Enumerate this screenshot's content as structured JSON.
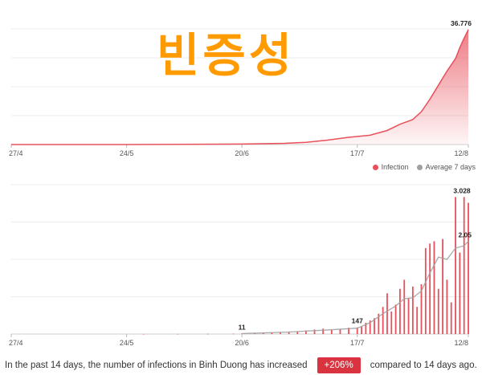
{
  "overlay_text": "빈증성",
  "footer": {
    "prefix": "In the past 14 days, the number of infections in Binh Duong has increased",
    "badge": "+206%",
    "suffix": "compared to 14 days ago."
  },
  "legend": {
    "infection": "Infection",
    "average": "Average 7 days",
    "infection_color": "#e8505b",
    "average_color": "#a0a0a0"
  },
  "chart_data": [
    {
      "type": "area",
      "x_ticks": [
        "27/4",
        "24/5",
        "20/6",
        "17/7",
        "12/8"
      ],
      "x_start": "27/4",
      "x_end": "12/8",
      "ylim": [
        0,
        37000
      ],
      "grid": true,
      "series": [
        {
          "name": "Infection",
          "color": "#e8505b",
          "points": [
            [
              "27/4",
              0
            ],
            [
              "24/5",
              2
            ],
            [
              "20/6",
              150
            ],
            [
              "30/6",
              400
            ],
            [
              "5/7",
              700
            ],
            [
              "10/7",
              1400
            ],
            [
              "15/7",
              2300
            ],
            [
              "20/7",
              3000
            ],
            [
              "24/7",
              4500
            ],
            [
              "27/7",
              6500
            ],
            [
              "30/7",
              8000
            ],
            [
              "1/8",
              10500
            ],
            [
              "3/8",
              14500
            ],
            [
              "5/8",
              19000
            ],
            [
              "7/8",
              23500
            ],
            [
              "9/8",
              27500
            ],
            [
              "10/8",
              31000
            ],
            [
              "11/8",
              34000
            ],
            [
              "12/8",
              36776
            ]
          ]
        }
      ],
      "labels": [
        {
          "x": "12/8",
          "text": "36.776"
        }
      ]
    },
    {
      "type": "bar",
      "x_ticks": [
        "27/4",
        "24/5",
        "20/6",
        "17/7",
        "12/8"
      ],
      "x_start": "27/4",
      "x_end": "12/8",
      "ylim": [
        0,
        3300
      ],
      "grid": true,
      "series": [
        {
          "name": "Infection",
          "type": "bar",
          "color": "#e8505b",
          "points": [
            [
              "28/5",
              2
            ],
            [
              "5/6",
              3
            ],
            [
              "12/6",
              5
            ],
            [
              "18/6",
              8
            ],
            [
              "20/6",
              11
            ],
            [
              "23/6",
              20
            ],
            [
              "25/6",
              25
            ],
            [
              "27/6",
              35
            ],
            [
              "29/6",
              45
            ],
            [
              "1/7",
              40
            ],
            [
              "3/7",
              60
            ],
            [
              "5/7",
              80
            ],
            [
              "7/7",
              100
            ],
            [
              "9/7",
              120
            ],
            [
              "11/7",
              90
            ],
            [
              "13/7",
              110
            ],
            [
              "15/7",
              140
            ],
            [
              "17/7",
              147
            ],
            [
              "18/7",
              160
            ],
            [
              "19/7",
              250
            ],
            [
              "20/7",
              300
            ],
            [
              "21/7",
              350
            ],
            [
              "22/7",
              450
            ],
            [
              "23/7",
              600
            ],
            [
              "24/7",
              900
            ],
            [
              "25/7",
              500
            ],
            [
              "26/7",
              650
            ],
            [
              "27/7",
              1000
            ],
            [
              "28/7",
              1200
            ],
            [
              "29/7",
              800
            ],
            [
              "30/7",
              1050
            ],
            [
              "31/7",
              600
            ],
            [
              "1/8",
              1100
            ],
            [
              "2/8",
              1900
            ],
            [
              "3/8",
              2000
            ],
            [
              "4/8",
              2050
            ],
            [
              "5/8",
              1000
            ],
            [
              "6/8",
              2100
            ],
            [
              "7/8",
              1200
            ],
            [
              "8/8",
              700
            ],
            [
              "9/8",
              3028
            ],
            [
              "10/8",
              1800
            ],
            [
              "11/8",
              3028
            ],
            [
              "12/8",
              2900
            ]
          ]
        },
        {
          "name": "Average 7 days",
          "type": "line",
          "color": "#a0a0a0",
          "points": [
            [
              "20/6",
              10
            ],
            [
              "1/7",
              45
            ],
            [
              "10/7",
              90
            ],
            [
              "17/7",
              130
            ],
            [
              "20/7",
              250
            ],
            [
              "23/7",
              450
            ],
            [
              "26/7",
              620
            ],
            [
              "28/7",
              780
            ],
            [
              "30/7",
              800
            ],
            [
              "1/8",
              950
            ],
            [
              "3/8",
              1350
            ],
            [
              "5/8",
              1700
            ],
            [
              "7/8",
              1650
            ],
            [
              "9/8",
              1900
            ],
            [
              "11/8",
              1950
            ],
            [
              "12/8",
              2050
            ]
          ]
        }
      ],
      "labels": [
        {
          "x": "20/6",
          "text": "11"
        },
        {
          "x": "17/7",
          "text": "147"
        },
        {
          "x": "9/8",
          "text": "3.028"
        },
        {
          "x": "12/8",
          "text": "2.05"
        }
      ]
    }
  ]
}
